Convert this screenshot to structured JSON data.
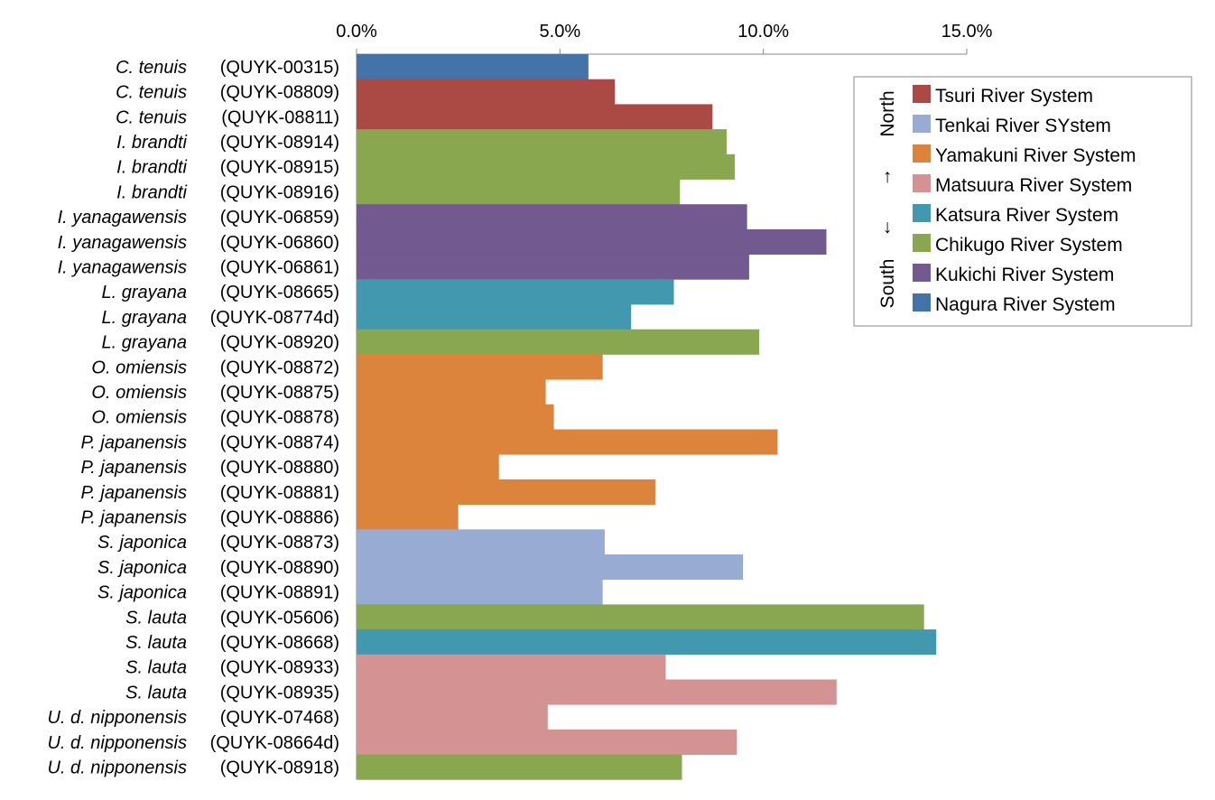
{
  "chart_data": {
    "type": "bar",
    "orientation": "horizontal",
    "title": "",
    "xlabel": "",
    "ylabel": "",
    "xlim": [
      0,
      15
    ],
    "x_ticks": [
      "0.0%",
      "5.0%",
      "10.0%",
      "15.0%"
    ],
    "x_tick_values": [
      0,
      5,
      10,
      15
    ],
    "axis_position": "top",
    "grid": false,
    "legend_position": "top-right",
    "legend_direction": {
      "top": "North",
      "bottom": "South",
      "up_arrow": "↑",
      "down_arrow": "↓"
    },
    "series": [
      {
        "name": "Tsuri River System",
        "color": "#AB4A45"
      },
      {
        "name": "Tenkai River SYstem",
        "color": "#97ABD3"
      },
      {
        "name": "Yamakuni River System",
        "color": "#DD843C"
      },
      {
        "name": "Matsuura River System",
        "color": "#D49392"
      },
      {
        "name": "Katsura River System",
        "color": "#4299AF"
      },
      {
        "name": "Chikugo River System",
        "color": "#89A74F"
      },
      {
        "name": "Kukichi River System",
        "color": "#72598F"
      },
      {
        "name": "Nagura River System",
        "color": "#4373A9"
      }
    ],
    "bars": [
      {
        "species": "C. tenuis",
        "specimen": "(QUYK-00315)",
        "value": 5.7,
        "series": "Nagura River System"
      },
      {
        "species": "C. tenuis",
        "specimen": "(QUYK-08809)",
        "value": 6.35,
        "series": "Tsuri River System"
      },
      {
        "species": "C. tenuis",
        "specimen": "(QUYK-08811)",
        "value": 8.75,
        "series": "Tsuri River System"
      },
      {
        "species": "I. brandti",
        "specimen": "(QUYK-08914)",
        "value": 9.1,
        "series": "Chikugo River System"
      },
      {
        "species": "I. brandti",
        "specimen": "(QUYK-08915)",
        "value": 9.3,
        "series": "Chikugo River System"
      },
      {
        "species": "I. brandti",
        "specimen": "(QUYK-08916)",
        "value": 7.95,
        "series": "Chikugo River System"
      },
      {
        "species": "I. yanagawensis",
        "specimen": "(QUYK-06859)",
        "value": 9.6,
        "series": "Kukichi River System"
      },
      {
        "species": "I. yanagawensis",
        "specimen": "(QUYK-06860)",
        "value": 11.55,
        "series": "Kukichi River System"
      },
      {
        "species": "I. yanagawensis",
        "specimen": "(QUYK-06861)",
        "value": 9.65,
        "series": "Kukichi River System"
      },
      {
        "species": "L. grayana",
        "specimen": "(QUYK-08665)",
        "value": 7.8,
        "series": "Katsura River System"
      },
      {
        "species": "L. grayana",
        "specimen": "(QUYK-08774d)",
        "value": 6.75,
        "series": "Katsura River System"
      },
      {
        "species": "L. grayana",
        "specimen": "(QUYK-08920)",
        "value": 9.9,
        "series": "Chikugo River System"
      },
      {
        "species": "O. omiensis",
        "specimen": "(QUYK-08872)",
        "value": 6.05,
        "series": "Yamakuni River System"
      },
      {
        "species": "O. omiensis",
        "specimen": "(QUYK-08875)",
        "value": 4.65,
        "series": "Yamakuni River System"
      },
      {
        "species": "O. omiensis",
        "specimen": "(QUYK-08878)",
        "value": 4.85,
        "series": "Yamakuni River System"
      },
      {
        "species": "P. japanensis",
        "specimen": "(QUYK-08874)",
        "value": 10.35,
        "series": "Yamakuni River System"
      },
      {
        "species": "P. japanensis",
        "specimen": "(QUYK-08880)",
        "value": 3.5,
        "series": "Yamakuni River System"
      },
      {
        "species": "P. japanensis",
        "specimen": "(QUYK-08881)",
        "value": 7.35,
        "series": "Yamakuni River System"
      },
      {
        "species": "P. japanensis",
        "specimen": "(QUYK-08886)",
        "value": 2.5,
        "series": "Yamakuni River System"
      },
      {
        "species": "S. japonica",
        "specimen": "(QUYK-08873)",
        "value": 6.1,
        "series": "Tenkai River SYstem"
      },
      {
        "species": "S. japonica",
        "specimen": "(QUYK-08890)",
        "value": 9.5,
        "series": "Tenkai River SYstem"
      },
      {
        "species": "S. japonica",
        "specimen": "(QUYK-08891)",
        "value": 6.05,
        "series": "Tenkai River SYstem"
      },
      {
        "species": "S. lauta",
        "specimen": "(QUYK-05606)",
        "value": 13.95,
        "series": "Chikugo River System"
      },
      {
        "species": "S. lauta",
        "specimen": "(QUYK-08668)",
        "value": 14.25,
        "series": "Katsura River System"
      },
      {
        "species": "S. lauta",
        "specimen": "(QUYK-08933)",
        "value": 7.6,
        "series": "Matsuura River System"
      },
      {
        "species": "S. lauta",
        "specimen": "(QUYK-08935)",
        "value": 11.8,
        "series": "Matsuura River System"
      },
      {
        "species": "U. d. nipponensis",
        "specimen": "(QUYK-07468)",
        "value": 4.7,
        "series": "Matsuura River System"
      },
      {
        "species": "U. d. nipponensis",
        "specimen": "(QUYK-08664d)",
        "value": 9.35,
        "series": "Matsuura River System"
      },
      {
        "species": "U. d. nipponensis",
        "specimen": "(QUYK-08918)",
        "value": 8.0,
        "series": "Chikugo River System"
      }
    ]
  }
}
